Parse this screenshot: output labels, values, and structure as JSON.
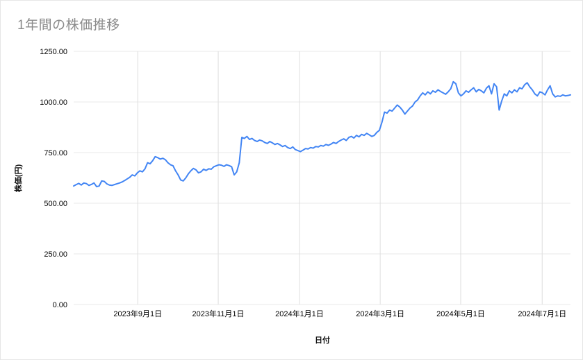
{
  "chart_data": {
    "type": "line",
    "title": "1年間の株価推移",
    "xlabel": "日付",
    "ylabel": "株価(円)",
    "ylim": [
      0,
      1250
    ],
    "grid": true,
    "legend": "none",
    "line_color": "#4285f4",
    "y_ticks": [
      {
        "value": 0,
        "label": "0.00"
      },
      {
        "value": 250,
        "label": "250.00"
      },
      {
        "value": 500,
        "label": "500.00"
      },
      {
        "value": 750,
        "label": "750.00"
      },
      {
        "value": 1000,
        "label": "1000.00"
      },
      {
        "value": 1250,
        "label": "1250.00"
      }
    ],
    "x_ticks": [
      {
        "pos": 0.129,
        "label": "2023年9月1日"
      },
      {
        "pos": 0.291,
        "label": "2023年11月1日"
      },
      {
        "pos": 0.4545,
        "label": "2024年1月1日"
      },
      {
        "pos": 0.617,
        "label": "2024年3月1日"
      },
      {
        "pos": 0.779,
        "label": "2024年5月1日"
      },
      {
        "pos": 0.943,
        "label": "2024年7月1日"
      }
    ],
    "series": [
      {
        "color": "#4285f4",
        "values": [
          585,
          592,
          598,
          590,
          600,
          597,
          588,
          593,
          600,
          582,
          585,
          610,
          608,
          596,
          590,
          588,
          592,
          596,
          600,
          605,
          612,
          620,
          628,
          640,
          635,
          650,
          660,
          655,
          670,
          700,
          695,
          710,
          730,
          725,
          718,
          722,
          715,
          700,
          690,
          685,
          660,
          640,
          615,
          610,
          625,
          645,
          660,
          672,
          665,
          650,
          655,
          668,
          662,
          670,
          668,
          680,
          685,
          690,
          688,
          682,
          690,
          686,
          680,
          640,
          655,
          700,
          825,
          820,
          830,
          815,
          820,
          810,
          805,
          812,
          808,
          800,
          795,
          805,
          798,
          790,
          795,
          788,
          780,
          785,
          775,
          770,
          778,
          765,
          760,
          755,
          762,
          770,
          768,
          775,
          772,
          780,
          778,
          785,
          782,
          790,
          786,
          792,
          800,
          795,
          805,
          812,
          818,
          810,
          825,
          830,
          822,
          835,
          828,
          840,
          835,
          845,
          838,
          830,
          835,
          850,
          860,
          900,
          950,
          945,
          960,
          955,
          970,
          985,
          975,
          960,
          940,
          955,
          970,
          980,
          1000,
          1010,
          1030,
          1045,
          1035,
          1050,
          1040,
          1055,
          1048,
          1060,
          1052,
          1045,
          1038,
          1050,
          1065,
          1100,
          1090,
          1045,
          1030,
          1040,
          1055,
          1048,
          1060,
          1070,
          1050,
          1062,
          1055,
          1045,
          1068,
          1080,
          1040,
          1090,
          1075,
          960,
          1005,
          1040,
          1030,
          1055,
          1045,
          1060,
          1050,
          1070,
          1065,
          1085,
          1095,
          1075,
          1060,
          1040,
          1030,
          1050,
          1045,
          1035,
          1060,
          1080,
          1040,
          1025,
          1030,
          1028,
          1035,
          1030,
          1032,
          1035
        ]
      }
    ]
  }
}
